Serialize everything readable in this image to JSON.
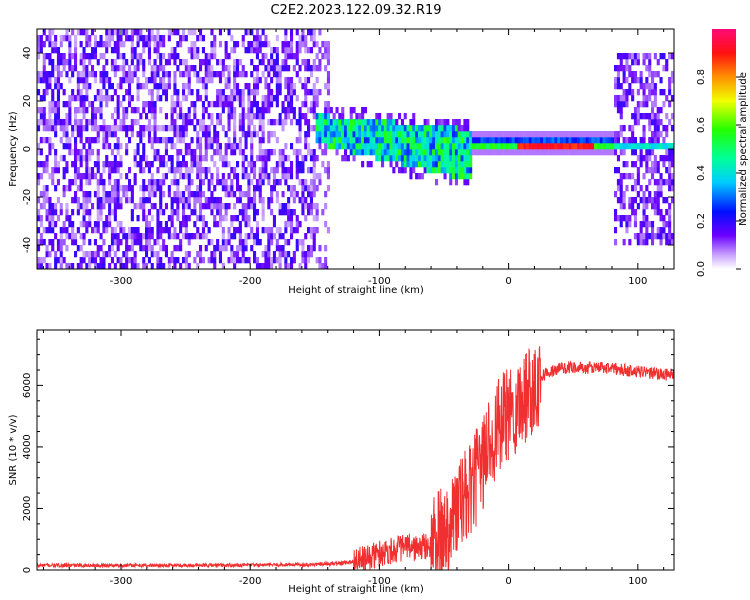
{
  "title": "C2E2.2023.122.09.32.R19",
  "chart_data": [
    {
      "type": "heatmap",
      "xlabel": "Height of straight line (km)",
      "ylabel": "Frequency (Hz)",
      "xlim": [
        -365,
        128
      ],
      "ylim": [
        -50,
        50
      ],
      "xticks": [
        -300,
        -200,
        -100,
        0,
        100
      ],
      "yticks": [
        -40,
        -20,
        0,
        20,
        40
      ],
      "colorbar": {
        "label": "Normalized spectral amplitude",
        "range": [
          0,
          1
        ],
        "ticks": [
          0.0,
          0.2,
          0.4,
          0.6,
          0.8
        ]
      },
      "regions": [
        {
          "x_range": [
            -365,
            -150
          ],
          "description_values": {
            "freq_range": [
              -50,
              50
            ],
            "amplitude": 0.15
          }
        },
        {
          "x_range": [
            -150,
            -30
          ],
          "description_values": {
            "freq_range": [
              -15,
              12
            ],
            "amplitude": 0.45
          }
        },
        {
          "x_range": [
            -30,
            80
          ],
          "description_values": {
            "freq_center": 1,
            "amplitude": 0.85
          }
        },
        {
          "x_range": [
            80,
            128
          ],
          "description_values": {
            "freq_range": [
              -40,
              38
            ],
            "amplitude": 0.2
          }
        }
      ]
    },
    {
      "type": "line",
      "xlabel": "Height of straight line (km)",
      "ylabel": "SNR (10 * v/v)",
      "xlim": [
        -365,
        128
      ],
      "ylim": [
        0,
        7800
      ],
      "xticks": [
        -300,
        -200,
        -100,
        0,
        100
      ],
      "yticks": [
        0,
        2000,
        4000,
        6000
      ],
      "color": "#f03030",
      "series": [
        {
          "x": [
            -365,
            -300,
            -250,
            -200,
            -150,
            -130,
            -110,
            -100,
            -90,
            -80,
            -70,
            -60,
            -50,
            -40,
            -30,
            -20,
            -15,
            -10,
            -5,
            0,
            5,
            10,
            15,
            20,
            25,
            30,
            40,
            50,
            60,
            70,
            80,
            90,
            100,
            110,
            120,
            128
          ],
          "y": [
            150,
            150,
            150,
            160,
            180,
            220,
            350,
            550,
            650,
            750,
            700,
            800,
            1200,
            2000,
            2500,
            3500,
            4200,
            4500,
            4800,
            5000,
            5300,
            5500,
            5800,
            6100,
            6300,
            6400,
            6550,
            6600,
            6550,
            6600,
            6550,
            6500,
            6450,
            6400,
            6350,
            6350
          ]
        }
      ]
    }
  ]
}
